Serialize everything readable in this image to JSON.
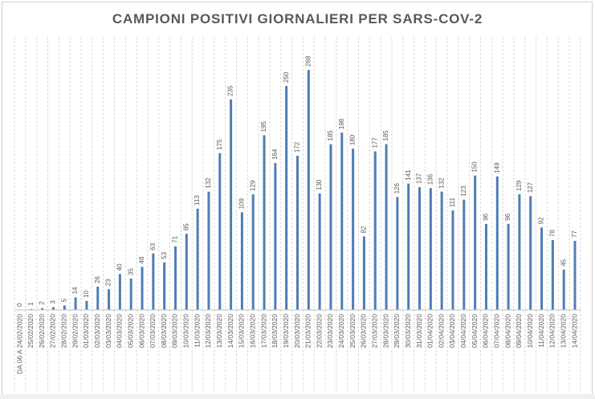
{
  "chart_data": {
    "type": "bar",
    "title": "CAMPIONI POSITIVI GIORNALIERI PER SARS-COV-2",
    "xlabel": "",
    "ylabel": "",
    "ylim": [
      0,
      268
    ],
    "grid": "vertical-dashed",
    "legend": "none",
    "bar_color": "#4f7db5",
    "categories": [
      "DA 06 A 24/02/2020",
      "25/02/2020",
      "26/02/2020",
      "27/02/2020",
      "28/02/2020",
      "29/02/2020",
      "01/03/2020",
      "02/03/2020",
      "03/03/2020",
      "04/03/2020",
      "05/03/2020",
      "06/03/2020",
      "07/03/2020",
      "08/03/2020",
      "09/03/2020",
      "10/03/2020",
      "11/03/2020",
      "12/03/2020",
      "13/03/2020",
      "14/03/2020",
      "15/03/2020",
      "16/03/2020",
      "17/03/2020",
      "18/03/2020",
      "19/03/2020",
      "20/03/2020",
      "21/03/2020",
      "22/03/2020",
      "23/03/2020",
      "24/03/2020",
      "25/03/2020",
      "26/03/2020",
      "27/03/2020",
      "28/03/2020",
      "29/03/2020",
      "30/03/2020",
      "31/03/2020",
      "01/04/2020",
      "02/04/2020",
      "03/04/2020",
      "04/04/2020",
      "05/04/2020",
      "06/04/2020",
      "07/04/2020",
      "08/04/2020",
      "09/04/2020",
      "10/04/2020",
      "11/04/2020",
      "12/04/2020",
      "13/04/2020",
      "14/04/2020"
    ],
    "values": [
      0,
      1,
      2,
      3,
      5,
      14,
      10,
      26,
      23,
      40,
      35,
      48,
      63,
      53,
      71,
      85,
      113,
      132,
      175,
      235,
      109,
      129,
      195,
      164,
      250,
      172,
      268,
      130,
      185,
      198,
      180,
      82,
      177,
      185,
      126,
      141,
      137,
      136,
      132,
      111,
      123,
      150,
      96,
      149,
      96,
      129,
      127,
      92,
      78,
      45,
      77
    ]
  }
}
